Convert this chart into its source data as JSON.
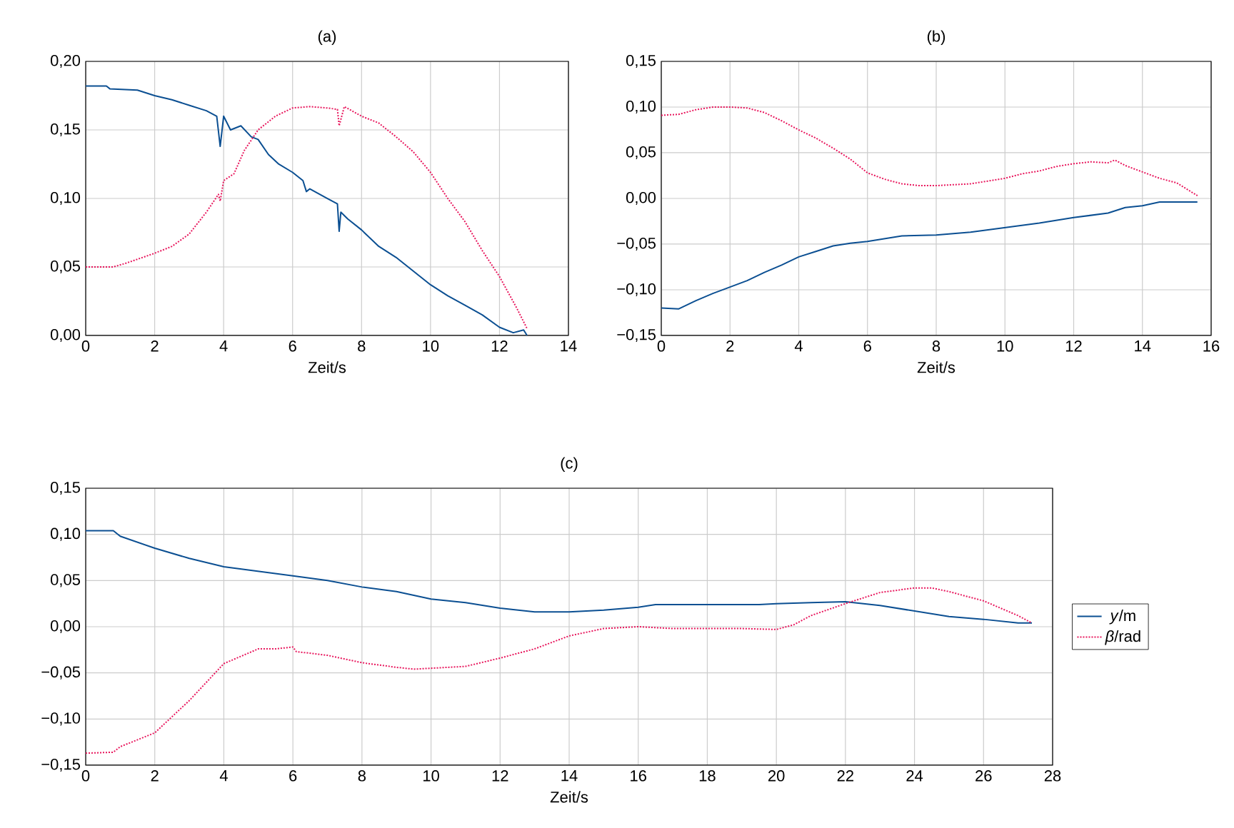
{
  "chart_data": [
    {
      "type": "line",
      "title": "(a)",
      "xlabel": "Zeit/s",
      "xlim": [
        0,
        14
      ],
      "ylim": [
        0,
        0.2
      ],
      "xticks": [
        0,
        2,
        4,
        6,
        8,
        10,
        12,
        14
      ],
      "yticks": [
        {
          "value": 0,
          "label": "0,00"
        },
        {
          "value": 0.05,
          "label": "0,05"
        },
        {
          "value": 0.1,
          "label": "0,10"
        },
        {
          "value": 0.15,
          "label": "0,15"
        },
        {
          "value": 0.2,
          "label": "0,20"
        }
      ],
      "grid": true,
      "legend": false,
      "marker": "none",
      "series": [
        {
          "color": "#0b4f92",
          "line_style": "solid",
          "x": [
            0,
            0.6,
            0.7,
            1.5,
            2,
            2.5,
            3,
            3.5,
            3.8,
            3.9,
            4.0,
            4.2,
            4.5,
            4.8,
            5,
            5.3,
            5.6,
            6,
            6.3,
            6.4,
            6.5,
            7,
            7.3,
            7.35,
            7.4,
            7.6,
            8,
            8.5,
            9,
            9.5,
            10,
            10.5,
            11,
            11.5,
            12,
            12.4,
            12.7,
            12.8
          ],
          "values": [
            0.182,
            0.182,
            0.18,
            0.179,
            0.175,
            0.172,
            0.168,
            0.164,
            0.16,
            0.138,
            0.16,
            0.15,
            0.153,
            0.145,
            0.143,
            0.132,
            0.125,
            0.119,
            0.113,
            0.105,
            0.107,
            0.1,
            0.096,
            0.076,
            0.09,
            0.085,
            0.077,
            0.065,
            0.057,
            0.047,
            0.037,
            0.029,
            0.022,
            0.015,
            0.006,
            0.002,
            0.004,
            0.0
          ]
        },
        {
          "color": "#e8175d",
          "line_style": "dotted",
          "x": [
            0,
            0.8,
            1.2,
            2,
            2.5,
            3,
            3.5,
            3.85,
            3.9,
            4,
            4.3,
            4.6,
            5,
            5.5,
            6,
            6.5,
            7,
            7.3,
            7.35,
            7.5,
            8,
            8.5,
            9,
            9.5,
            10,
            10.5,
            11,
            11.5,
            12,
            12.5,
            12.8
          ],
          "values": [
            0.05,
            0.05,
            0.053,
            0.06,
            0.065,
            0.074,
            0.09,
            0.103,
            0.098,
            0.113,
            0.118,
            0.135,
            0.15,
            0.16,
            0.166,
            0.167,
            0.166,
            0.165,
            0.153,
            0.167,
            0.16,
            0.155,
            0.145,
            0.134,
            0.119,
            0.1,
            0.083,
            0.062,
            0.043,
            0.02,
            0.005
          ]
        }
      ]
    },
    {
      "type": "line",
      "title": "(b)",
      "xlabel": "Zeit/s",
      "xlim": [
        0,
        16
      ],
      "ylim": [
        -0.15,
        0.15
      ],
      "xticks": [
        0,
        2,
        4,
        6,
        8,
        10,
        12,
        14,
        16
      ],
      "yticks": [
        {
          "value": -0.15,
          "label": "−0,15"
        },
        {
          "value": -0.1,
          "label": "−0,10"
        },
        {
          "value": -0.05,
          "label": "−0,05"
        },
        {
          "value": 0,
          "label": "0,00"
        },
        {
          "value": 0.05,
          "label": "0,05"
        },
        {
          "value": 0.1,
          "label": "0,10"
        },
        {
          "value": 0.15,
          "label": "0,15"
        }
      ],
      "grid": true,
      "legend": false,
      "marker": "none",
      "series": [
        {
          "color": "#0b4f92",
          "line_style": "solid",
          "x": [
            0,
            0.5,
            1,
            1.5,
            2,
            2.5,
            3,
            3.5,
            4,
            4.5,
            5,
            5.5,
            6,
            7,
            8,
            9,
            10,
            11,
            12,
            13,
            13.5,
            14,
            14.5,
            15,
            15.6
          ],
          "values": [
            -0.12,
            -0.121,
            -0.112,
            -0.104,
            -0.097,
            -0.09,
            -0.081,
            -0.073,
            -0.064,
            -0.058,
            -0.052,
            -0.049,
            -0.047,
            -0.041,
            -0.04,
            -0.037,
            -0.032,
            -0.027,
            -0.021,
            -0.016,
            -0.01,
            -0.008,
            -0.004,
            -0.004,
            -0.004
          ]
        },
        {
          "color": "#e8175d",
          "line_style": "dotted",
          "x": [
            0,
            0.5,
            1,
            1.5,
            2,
            2.5,
            3,
            3.5,
            4,
            4.5,
            5,
            5.5,
            6,
            6.5,
            7,
            7.5,
            8,
            9,
            9.5,
            10,
            10.5,
            11,
            11.5,
            12,
            12.5,
            13,
            13.2,
            13.5,
            14,
            14.5,
            15,
            15.3,
            15.6
          ],
          "values": [
            0.091,
            0.092,
            0.097,
            0.1,
            0.1,
            0.099,
            0.094,
            0.085,
            0.075,
            0.066,
            0.055,
            0.043,
            0.028,
            0.021,
            0.016,
            0.014,
            0.014,
            0.016,
            0.019,
            0.022,
            0.027,
            0.03,
            0.035,
            0.038,
            0.04,
            0.039,
            0.042,
            0.036,
            0.029,
            0.022,
            0.017,
            0.01,
            0.003
          ]
        }
      ]
    },
    {
      "type": "line",
      "title": "(c)",
      "xlabel": "Zeit/s",
      "xlim": [
        0,
        28
      ],
      "ylim": [
        -0.15,
        0.15
      ],
      "xticks": [
        0,
        2,
        4,
        6,
        8,
        10,
        12,
        14,
        16,
        18,
        20,
        22,
        24,
        26,
        28
      ],
      "yticks": [
        {
          "value": -0.15,
          "label": "−0,15"
        },
        {
          "value": -0.1,
          "label": "−0,10"
        },
        {
          "value": -0.05,
          "label": "−0,05"
        },
        {
          "value": 0,
          "label": "0,00"
        },
        {
          "value": 0.05,
          "label": "0,05"
        },
        {
          "value": 0.1,
          "label": "0,10"
        },
        {
          "value": 0.15,
          "label": "0,15"
        }
      ],
      "grid": true,
      "legend": "right",
      "marker": "none",
      "series": [
        {
          "name": "*y*/m",
          "color": "#0b4f92",
          "line_style": "solid",
          "x": [
            0,
            0.8,
            1,
            2,
            3,
            4,
            5,
            6,
            7,
            8,
            9,
            10,
            11,
            12,
            13,
            14,
            15,
            16,
            16.5,
            19.5,
            20,
            21,
            22,
            23,
            24,
            25,
            26,
            27,
            27.4
          ],
          "values": [
            0.104,
            0.104,
            0.098,
            0.085,
            0.074,
            0.065,
            0.06,
            0.055,
            0.05,
            0.043,
            0.038,
            0.03,
            0.026,
            0.02,
            0.016,
            0.016,
            0.018,
            0.021,
            0.024,
            0.024,
            0.025,
            0.026,
            0.027,
            0.023,
            0.017,
            0.011,
            0.008,
            0.004,
            0.004
          ]
        },
        {
          "name": "*β*/rad",
          "color": "#e8175d",
          "line_style": "dotted",
          "x": [
            0,
            0.8,
            1,
            2,
            3,
            4,
            5,
            5.5,
            6,
            6.1,
            7,
            8,
            9,
            9.5,
            10,
            11,
            12,
            13,
            14,
            15,
            16,
            17,
            19,
            20,
            20.5,
            21,
            22,
            23,
            24,
            24.5,
            25,
            26,
            27,
            27.4
          ],
          "values": [
            -0.137,
            -0.136,
            -0.13,
            -0.115,
            -0.08,
            -0.04,
            -0.024,
            -0.024,
            -0.022,
            -0.027,
            -0.031,
            -0.039,
            -0.044,
            -0.046,
            -0.045,
            -0.043,
            -0.034,
            -0.024,
            -0.01,
            -0.002,
            0.0,
            -0.002,
            -0.002,
            -0.003,
            0.002,
            0.012,
            0.025,
            0.037,
            0.042,
            0.042,
            0.038,
            0.028,
            0.012,
            0.004
          ]
        }
      ]
    }
  ]
}
